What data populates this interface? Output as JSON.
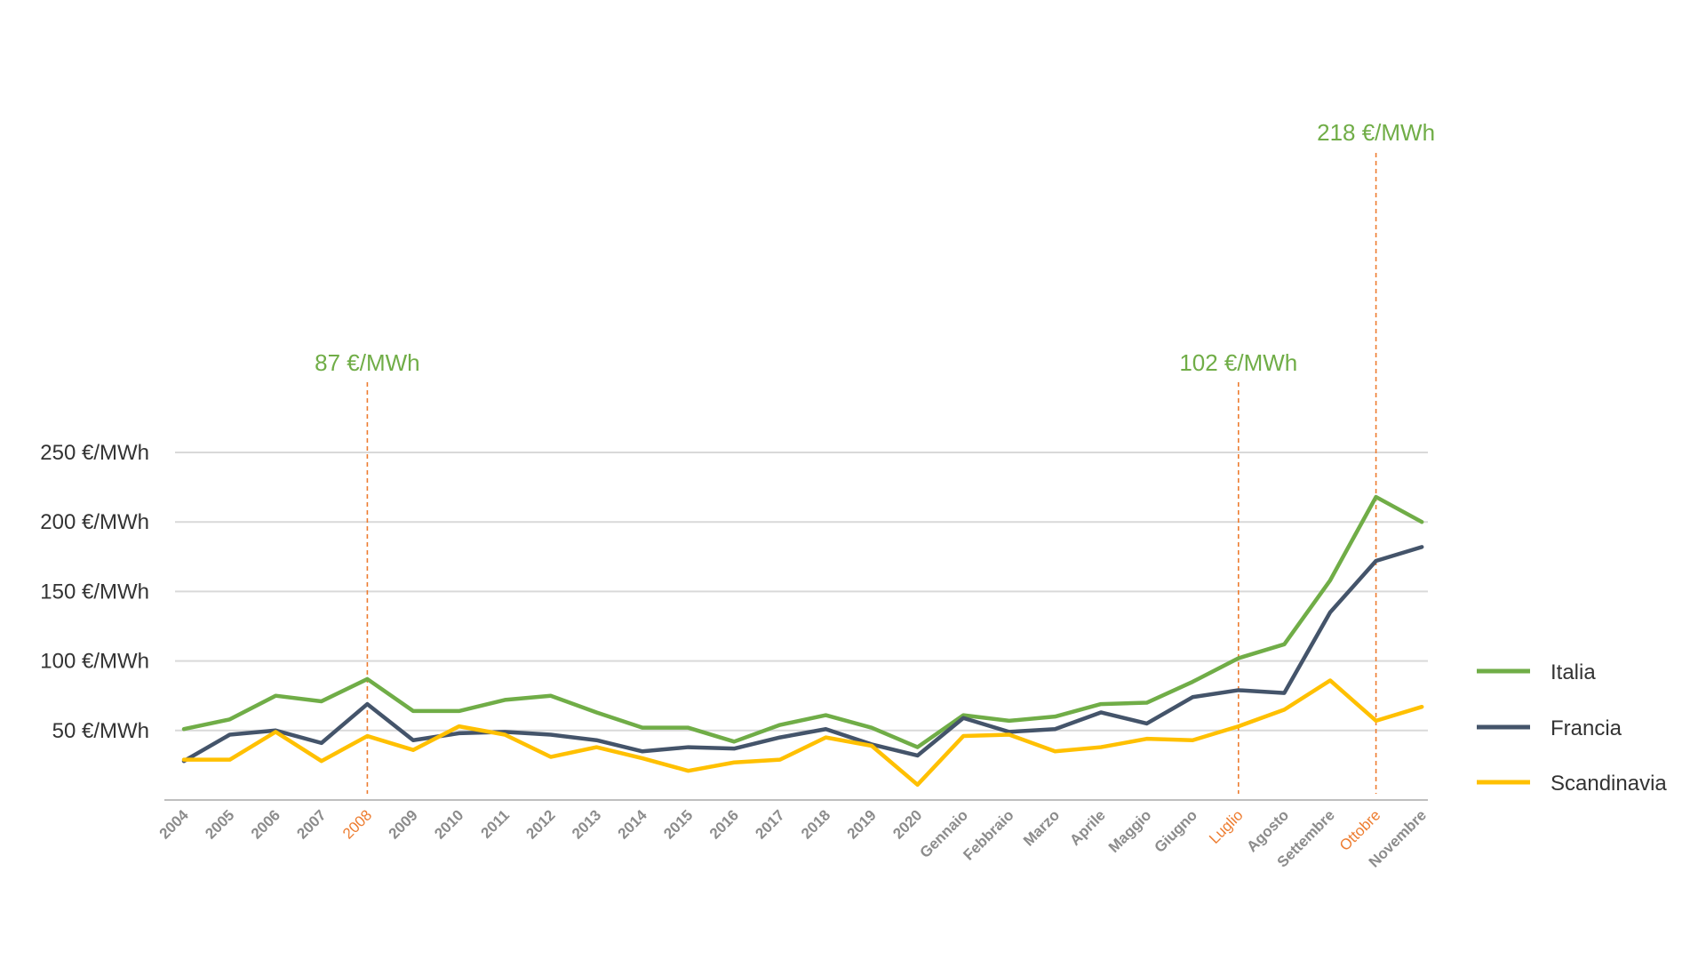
{
  "chart_data": {
    "type": "line",
    "categories": [
      "2004",
      "2005",
      "2006",
      "2007",
      "2008",
      "2009",
      "2010",
      "2011",
      "2012",
      "2013",
      "2014",
      "2015",
      "2016",
      "2017",
      "2018",
      "2019",
      "2020",
      "Gennaio",
      "Febbraio",
      "Marzo",
      "Aprile",
      "Maggio",
      "Giugno",
      "Luglio",
      "Agosto",
      "Settembre",
      "Ottobre",
      "Novembre"
    ],
    "highlighted_categories": [
      "2008",
      "Luglio",
      "Ottobre"
    ],
    "yticks": [
      {
        "value": 50,
        "label": "50 €/MWh"
      },
      {
        "value": 100,
        "label": "100 €/MWh"
      },
      {
        "value": 150,
        "label": "150 €/MWh"
      },
      {
        "value": 200,
        "label": "200 €/MWh"
      },
      {
        "value": 250,
        "label": "250 €/MWh"
      }
    ],
    "ylim": [
      0,
      250
    ],
    "grid": true,
    "legend_position": "right",
    "series": [
      {
        "name": "Italia",
        "color": "#70ad47",
        "values": [
          51,
          58,
          75,
          71,
          87,
          64,
          64,
          72,
          75,
          63,
          52,
          52,
          42,
          54,
          61,
          52,
          38,
          61,
          57,
          60,
          69,
          70,
          85,
          102,
          112,
          158,
          218,
          200
        ]
      },
      {
        "name": "Francia",
        "color": "#44546a",
        "values": [
          28,
          47,
          50,
          41,
          69,
          43,
          48,
          49,
          47,
          43,
          35,
          38,
          37,
          45,
          51,
          40,
          32,
          59,
          49,
          51,
          63,
          55,
          74,
          79,
          77,
          135,
          172,
          182
        ]
      },
      {
        "name": "Scandinavia",
        "color": "#ffc000",
        "values": [
          29,
          29,
          49,
          28,
          46,
          36,
          53,
          47,
          31,
          38,
          30,
          21,
          27,
          29,
          45,
          39,
          11,
          46,
          47,
          35,
          38,
          44,
          43,
          53,
          65,
          86,
          57,
          67
        ]
      }
    ],
    "annotations": [
      {
        "category": "2008",
        "label": "87 €/MWh",
        "color": "#70ad47"
      },
      {
        "category": "Luglio",
        "label": "102 €/MWh",
        "color": "#70ad47"
      },
      {
        "category": "Ottobre",
        "label": "218 €/MWh",
        "color": "#70ad47"
      }
    ],
    "highlight_color": "#ed7d31",
    "grid_color": "#d9d9d9",
    "axis_color": "#bfbfbf"
  }
}
